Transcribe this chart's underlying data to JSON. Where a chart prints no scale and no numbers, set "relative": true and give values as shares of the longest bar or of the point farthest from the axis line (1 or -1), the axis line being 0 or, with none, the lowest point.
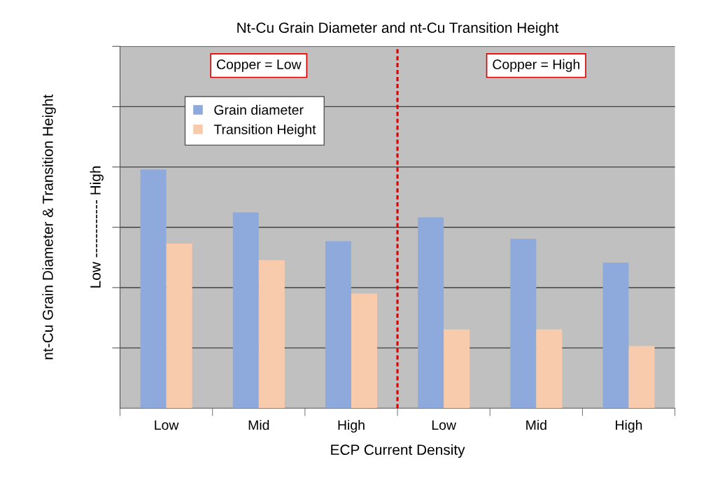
{
  "chart_data": {
    "type": "bar",
    "title": "Nt-Cu Grain Diameter and nt-Cu Transition Height",
    "xlabel": "ECP Current Density",
    "ylabel": "nt-Cu Grain Diameter & Transition Height",
    "categories": [
      "Low",
      "Mid",
      "High",
      "Low",
      "Mid",
      "High"
    ],
    "series": [
      {
        "name": "Grain diameter",
        "color": "#8eaadc",
        "values": [
          1,
          0.82,
          0.7,
          0.8,
          0.71,
          0.61
        ]
      },
      {
        "name": "Transition Height",
        "color": "#f8cbad",
        "values": [
          0.69,
          0.62,
          0.48,
          0.33,
          0.33,
          0.26
        ]
      }
    ],
    "relative": true,
    "grid": "y",
    "legend": "top left",
    "annotations": [
      "Copper = Low",
      "Copper = High",
      "Low ------------ High"
    ]
  }
}
